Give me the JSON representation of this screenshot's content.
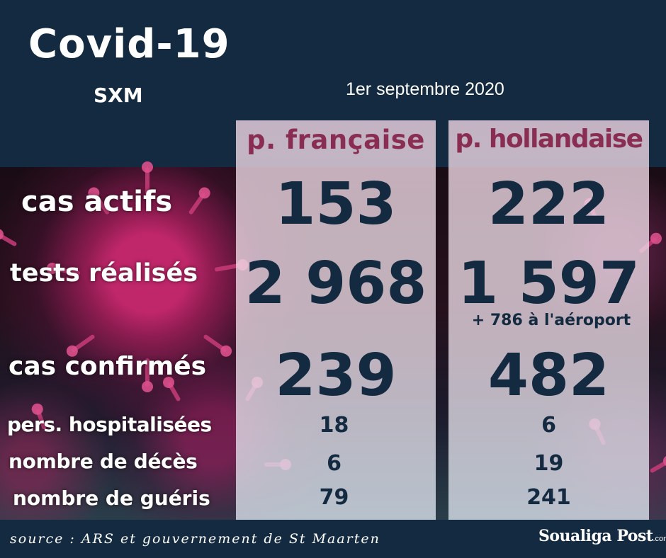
{
  "header": {
    "title": "Covid-19",
    "subtitle": "SXM",
    "date": "1er septembre 2020"
  },
  "columns": {
    "french": "p. française",
    "dutch": "p. hollandaise"
  },
  "rows": {
    "actifs": {
      "label": "cas actifs",
      "french": "153",
      "dutch": "222"
    },
    "tests": {
      "label": "tests réalisés",
      "french": "2 968",
      "dutch": "1 597",
      "dutch_note": "+ 786 à l'aéroport"
    },
    "confirmes": {
      "label": "cas confirmés",
      "french": "239",
      "dutch": "482"
    },
    "hosp": {
      "label": "pers. hospitalisées",
      "french": "18",
      "dutch": "6"
    },
    "deces": {
      "label": "nombre de décès",
      "french": "6",
      "dutch": "19"
    },
    "gueris": {
      "label": "nombre de guéris",
      "french": "79",
      "dutch": "241"
    }
  },
  "footer": {
    "source": "source : ARS et gouvernement de St Maarten",
    "logo_main": "Soualiga Post",
    "logo_domain": ".com"
  },
  "colors": {
    "navy": "#132a40",
    "header_accent": "#8a2d52",
    "virus": "#c8286e"
  },
  "icons": {
    "background": "virus-illustration"
  }
}
